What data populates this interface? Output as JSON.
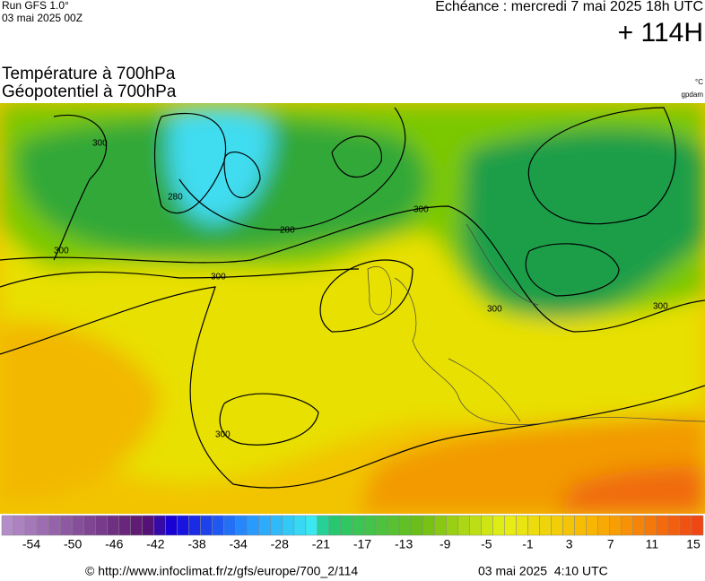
{
  "header": {
    "run": "Run GFS 1.0°",
    "date": "03 mai 2025 00Z",
    "echeance": "Echéance : mercredi 7 mai 2025 18h UTC",
    "lead": "+ 114H"
  },
  "titles": [
    "Température à 700hPa",
    "Géopotentiel à 700hPa"
  ],
  "units": [
    "°C",
    "gpdam"
  ],
  "map": {
    "contour_labels": [
      "300",
      "280",
      "300",
      "300",
      "300",
      "280",
      "300",
      "300",
      "300"
    ]
  },
  "colorbar": {
    "labels": [
      -54,
      -50,
      -46,
      -42,
      -38,
      -34,
      -28,
      -21,
      -17,
      -13,
      -9,
      -5,
      -1,
      3,
      7,
      11,
      15
    ]
  },
  "footer": {
    "url": "© http://www.infoclimat.fr/z/gfs/europe/700_2/114",
    "timestamp": "03 mai 2025  4:10 UTC"
  }
}
